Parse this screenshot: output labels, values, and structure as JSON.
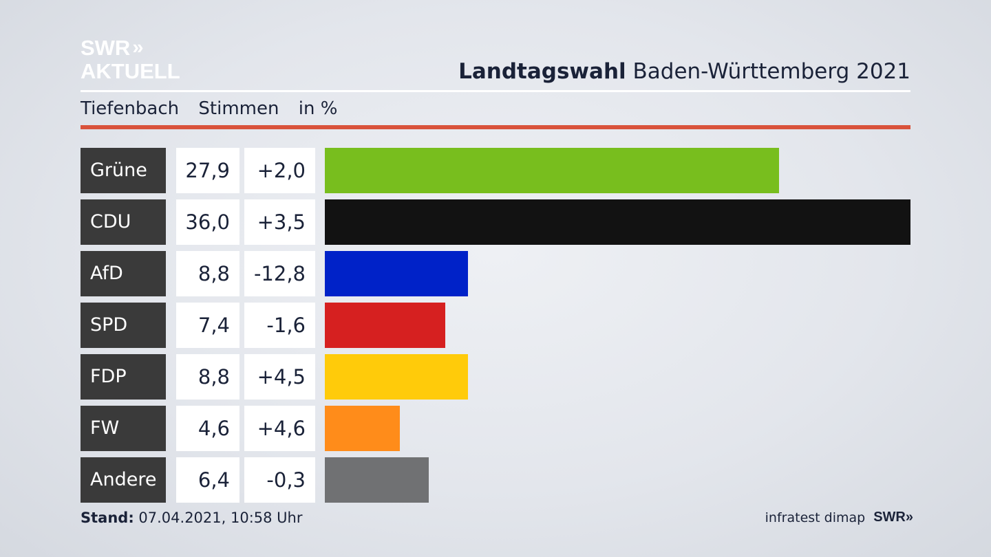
{
  "logo": {
    "line1": "SWR",
    "line1_arrows": "»",
    "line2": "AKTUELL"
  },
  "header": {
    "title_bold": "Landtagswahl",
    "title_rest": " Baden-Württemberg 2021"
  },
  "subheader": {
    "place": "Tiefenbach",
    "measure": "Stimmen",
    "unit": "in %"
  },
  "colors": {
    "accent_rule": "#d9523b",
    "label_bg": "#3a3a3a"
  },
  "chart_data": {
    "type": "bar",
    "orientation": "horizontal",
    "categories": [
      "Grüne",
      "CDU",
      "AfD",
      "SPD",
      "FDP",
      "FW",
      "Andere"
    ],
    "values": [
      27.9,
      36.0,
      8.8,
      7.4,
      8.8,
      4.6,
      6.4
    ],
    "value_labels": [
      "27,9",
      "36,0",
      "8,8",
      "7,4",
      "8,8",
      "4,6",
      "6,4"
    ],
    "change_labels": [
      "+2,0",
      "+3,5",
      "-12,8",
      "-1,6",
      "+4,5",
      "+4,6",
      "-0,3"
    ],
    "changes": [
      2.0,
      3.5,
      -12.8,
      -1.6,
      4.5,
      4.6,
      -0.3
    ],
    "colors": [
      "#78be1e",
      "#121212",
      "#0022c8",
      "#d62020",
      "#ffcb0a",
      "#ff8c1a",
      "#707173"
    ],
    "title": "Landtagswahl Baden-Württemberg 2021",
    "xlim": [
      0,
      36.0
    ],
    "grid": false,
    "legend": "none"
  },
  "footer": {
    "stand_label": "Stand:",
    "stand_value": " 07.04.2021, 10:58 Uhr",
    "source": "infratest dimap",
    "brand": "SWR",
    "brand_arrows": "»"
  }
}
